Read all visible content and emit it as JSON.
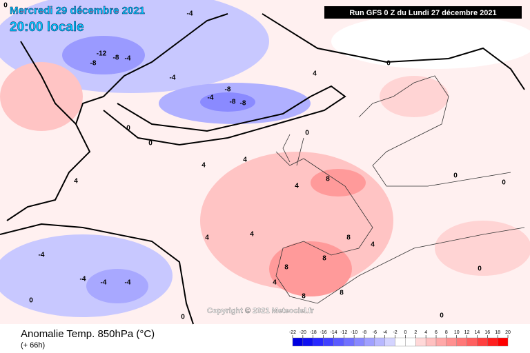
{
  "header": {
    "date": "Mercredi 29 décembre 2021",
    "time": "20:00 locale",
    "run": "Run GFS 0 Z du Lundi 27 décembre 2021"
  },
  "footer": {
    "title": "Anomalie Temp. 850hPa (°C)",
    "lead": "(+ 66h)",
    "copyright": "Copyright © 2021 Meteociel.fr"
  },
  "legend": {
    "ticks": [
      -22,
      -20,
      -18,
      -16,
      -14,
      -12,
      -10,
      -8,
      -6,
      -4,
      -2,
      0,
      2,
      4,
      6,
      8,
      10,
      12,
      14,
      16,
      18,
      20
    ],
    "colors": [
      "#0000e0",
      "#1010f0",
      "#2828ff",
      "#4040ff",
      "#5a5aff",
      "#7070ff",
      "#8888ff",
      "#a0a0ff",
      "#b8b8ff",
      "#d4d4ff",
      "#ffffff",
      "#ffffff",
      "#ffd8d8",
      "#ffc0c0",
      "#ffa8a8",
      "#ff9090",
      "#ff7878",
      "#ff6060",
      "#ff4040",
      "#ff2020",
      "#ff0000"
    ]
  },
  "contour_labels": [
    "-12",
    "-8",
    "-8",
    "-4",
    "-4",
    "-8",
    "-8",
    "-4",
    "-8",
    "-4",
    "-4",
    "-4",
    "0",
    "0",
    "0",
    "0",
    "0",
    "0",
    "0",
    "4",
    "4",
    "4",
    "4",
    "4",
    "4",
    "8",
    "8",
    "8",
    "8",
    "8",
    "4",
    "0",
    "-4",
    "-4",
    "0",
    "0",
    "4",
    "4",
    "8",
    "0"
  ]
}
